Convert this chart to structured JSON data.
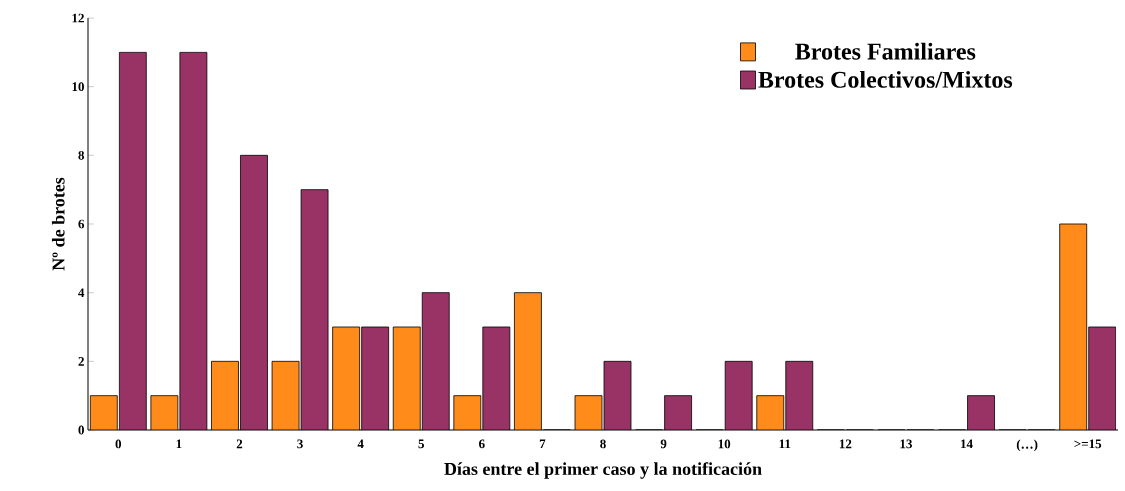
{
  "chart_data": {
    "type": "bar",
    "xlabel": "Días entre el primer caso y la notificación",
    "ylabel": "Nº de brotes",
    "categories": [
      "0",
      "1",
      "2",
      "3",
      "4",
      "5",
      "6",
      "7",
      "8",
      "9",
      "10",
      "11",
      "12",
      "13",
      "14",
      "(…)",
      ">=15"
    ],
    "series": [
      {
        "name": "Brotes Familiares",
        "color": "#ff8c1a",
        "values": [
          1,
          1,
          2,
          2,
          3,
          3,
          1,
          4,
          1,
          0,
          0,
          1,
          0,
          0,
          0,
          0,
          6
        ]
      },
      {
        "name": "Brotes Colectivos/Mixtos",
        "color": "#993366",
        "values": [
          11,
          11,
          8,
          7,
          3,
          4,
          3,
          0,
          2,
          1,
          2,
          2,
          0,
          0,
          1,
          0,
          3
        ]
      }
    ],
    "ylim": [
      0,
      12
    ],
    "yticks": [
      0,
      2,
      4,
      6,
      8,
      10,
      12
    ],
    "grid": false,
    "legend": "top right"
  }
}
